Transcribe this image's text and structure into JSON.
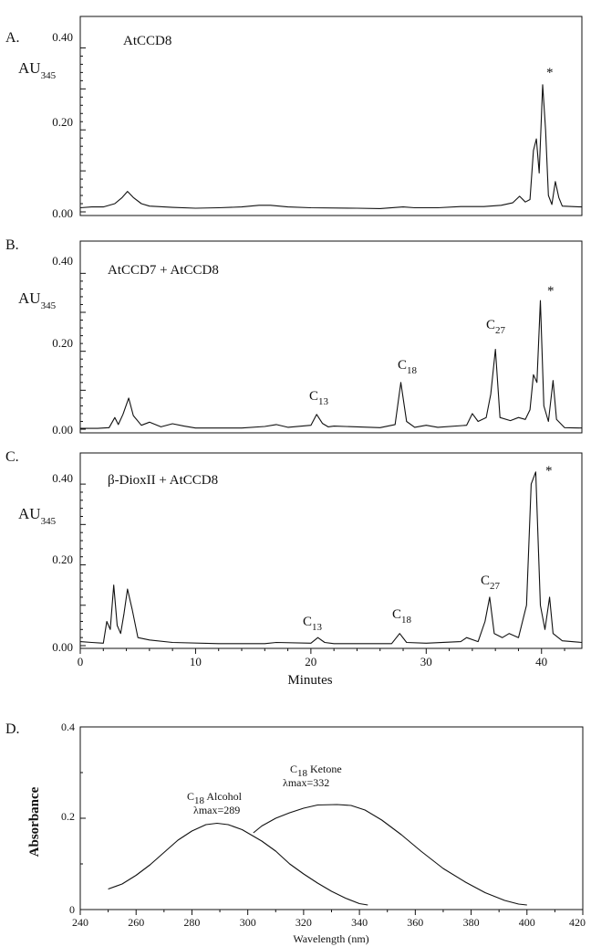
{
  "chart_data": [
    {
      "type": "line",
      "panel_label": "A.",
      "annotation": "AtCCD8",
      "ylabel": "AU",
      "ylabel_sub": "345",
      "yticks": [
        "0.00",
        "0.20",
        "0.40"
      ],
      "ylim": [
        0,
        0.45
      ],
      "xlim": [
        0,
        43.5
      ],
      "peak_labels": [
        {
          "x": 40.1,
          "y": 0.31,
          "text": "*"
        }
      ],
      "series": [
        {
          "points": [
            [
              0,
              0.01
            ],
            [
              1,
              0.012
            ],
            [
              2,
              0.012
            ],
            [
              3,
              0.02
            ],
            [
              3.6,
              0.034
            ],
            [
              4.1,
              0.05
            ],
            [
              4.6,
              0.035
            ],
            [
              5.3,
              0.02
            ],
            [
              6,
              0.014
            ],
            [
              8,
              0.011
            ],
            [
              10,
              0.009
            ],
            [
              12,
              0.01
            ],
            [
              14,
              0.012
            ],
            [
              15.5,
              0.016
            ],
            [
              16.5,
              0.016
            ],
            [
              18,
              0.012
            ],
            [
              20,
              0.01
            ],
            [
              24,
              0.009
            ],
            [
              26,
              0.008
            ],
            [
              28,
              0.012
            ],
            [
              29,
              0.01
            ],
            [
              31,
              0.01
            ],
            [
              33,
              0.013
            ],
            [
              35,
              0.013
            ],
            [
              36.5,
              0.016
            ],
            [
              37.5,
              0.022
            ],
            [
              38.1,
              0.038
            ],
            [
              38.6,
              0.024
            ],
            [
              39.0,
              0.03
            ],
            [
              39.3,
              0.15
            ],
            [
              39.55,
              0.178
            ],
            [
              39.8,
              0.095
            ],
            [
              40.1,
              0.31
            ],
            [
              40.35,
              0.2
            ],
            [
              40.6,
              0.04
            ],
            [
              40.9,
              0.018
            ],
            [
              41.2,
              0.074
            ],
            [
              41.5,
              0.035
            ],
            [
              41.8,
              0.014
            ],
            [
              43.5,
              0.012
            ]
          ]
        }
      ]
    },
    {
      "type": "line",
      "panel_label": "B.",
      "annotation": "AtCCD7 + AtCCD8",
      "ylabel": "AU",
      "ylabel_sub": "345",
      "yticks": [
        "0.00",
        "0.20",
        "0.40"
      ],
      "ylim": [
        0,
        0.45
      ],
      "xlim": [
        0,
        43.5
      ],
      "peak_labels": [
        {
          "x": 20.5,
          "y": 0.04,
          "text": "C",
          "sub": "13"
        },
        {
          "x": 27.9,
          "y": 0.12,
          "text": "C",
          "sub": "18"
        },
        {
          "x": 36.0,
          "y": 0.21,
          "text": "C",
          "sub": "27"
        },
        {
          "x": 40.0,
          "y": 0.33,
          "text": "*"
        }
      ],
      "series": [
        {
          "points": [
            [
              0,
              0.002
            ],
            [
              1.5,
              0.002
            ],
            [
              2.5,
              0.004
            ],
            [
              3.0,
              0.03
            ],
            [
              3.3,
              0.012
            ],
            [
              3.7,
              0.038
            ],
            [
              4.2,
              0.08
            ],
            [
              4.6,
              0.035
            ],
            [
              5.3,
              0.01
            ],
            [
              6,
              0.018
            ],
            [
              7,
              0.006
            ],
            [
              8,
              0.014
            ],
            [
              9,
              0.008
            ],
            [
              10,
              0.003
            ],
            [
              14,
              0.003
            ],
            [
              16,
              0.007
            ],
            [
              17,
              0.012
            ],
            [
              18,
              0.005
            ],
            [
              20,
              0.01
            ],
            [
              20.5,
              0.038
            ],
            [
              21,
              0.015
            ],
            [
              21.5,
              0.006
            ],
            [
              22,
              0.008
            ],
            [
              26,
              0.004
            ],
            [
              27.3,
              0.012
            ],
            [
              27.8,
              0.12
            ],
            [
              28.3,
              0.02
            ],
            [
              29,
              0.005
            ],
            [
              30,
              0.01
            ],
            [
              31,
              0.005
            ],
            [
              33.5,
              0.01
            ],
            [
              34.0,
              0.04
            ],
            [
              34.5,
              0.02
            ],
            [
              35.2,
              0.03
            ],
            [
              35.6,
              0.09
            ],
            [
              36.0,
              0.205
            ],
            [
              36.4,
              0.03
            ],
            [
              37.3,
              0.022
            ],
            [
              38.0,
              0.03
            ],
            [
              38.6,
              0.025
            ],
            [
              39.0,
              0.05
            ],
            [
              39.3,
              0.14
            ],
            [
              39.6,
              0.12
            ],
            [
              39.9,
              0.33
            ],
            [
              40.2,
              0.06
            ],
            [
              40.6,
              0.02
            ],
            [
              41.0,
              0.125
            ],
            [
              41.3,
              0.025
            ],
            [
              42,
              0.004
            ],
            [
              43.5,
              0.003
            ]
          ]
        }
      ]
    },
    {
      "type": "line",
      "panel_label": "C.",
      "annotation": "β-DioxII + AtCCD8",
      "ylabel": "AU",
      "ylabel_sub": "345",
      "yticks": [
        "0.00",
        "0.20",
        "0.40"
      ],
      "ylim": [
        0,
        0.45
      ],
      "xlim": [
        0,
        43.5
      ],
      "xticks": [
        "0",
        "10",
        "20",
        "30",
        "40"
      ],
      "xlabel": "Minutes",
      "peak_labels": [
        {
          "x": 20.7,
          "y": 0.02,
          "text": "C",
          "sub": "13"
        },
        {
          "x": 27.7,
          "y": 0.04,
          "text": "C",
          "sub": "18"
        },
        {
          "x": 35.5,
          "y": 0.12,
          "text": "C",
          "sub": "27"
        },
        {
          "x": 40.0,
          "y": 0.43,
          "text": "*"
        }
      ],
      "series": [
        {
          "points": [
            [
              0,
              0.01
            ],
            [
              1,
              0.008
            ],
            [
              2,
              0.006
            ],
            [
              2.3,
              0.06
            ],
            [
              2.6,
              0.04
            ],
            [
              2.9,
              0.15
            ],
            [
              3.2,
              0.05
            ],
            [
              3.5,
              0.03
            ],
            [
              3.8,
              0.08
            ],
            [
              4.1,
              0.14
            ],
            [
              4.5,
              0.09
            ],
            [
              5,
              0.02
            ],
            [
              6,
              0.014
            ],
            [
              8,
              0.008
            ],
            [
              12,
              0.005
            ],
            [
              16,
              0.005
            ],
            [
              17,
              0.008
            ],
            [
              20,
              0.006
            ],
            [
              20.6,
              0.02
            ],
            [
              21.2,
              0.008
            ],
            [
              22,
              0.005
            ],
            [
              27,
              0.005
            ],
            [
              27.7,
              0.03
            ],
            [
              28.3,
              0.008
            ],
            [
              30,
              0.006
            ],
            [
              33,
              0.01
            ],
            [
              33.5,
              0.02
            ],
            [
              34.5,
              0.01
            ],
            [
              35.1,
              0.06
            ],
            [
              35.5,
              0.12
            ],
            [
              35.9,
              0.03
            ],
            [
              36.6,
              0.02
            ],
            [
              37.2,
              0.03
            ],
            [
              38,
              0.02
            ],
            [
              38.7,
              0.1
            ],
            [
              39.1,
              0.4
            ],
            [
              39.5,
              0.43
            ],
            [
              39.9,
              0.1
            ],
            [
              40.3,
              0.04
            ],
            [
              40.7,
              0.12
            ],
            [
              41,
              0.03
            ],
            [
              41.8,
              0.012
            ],
            [
              43.5,
              0.008
            ]
          ]
        }
      ]
    },
    {
      "type": "line",
      "panel_label": "D.",
      "ylabel": "Absorbance",
      "xlabel": "Wavelength (nm)",
      "ylim": [
        0,
        0.4
      ],
      "xlim": [
        240,
        420
      ],
      "yticks": [
        "0",
        "0.2",
        "0.4"
      ],
      "xticks": [
        "240",
        "260",
        "280",
        "300",
        "320",
        "340",
        "360",
        "380",
        "400",
        "420"
      ],
      "peak_labels": [
        {
          "text": "C",
          "sub": "18",
          "rest": " Alcohol",
          "line2": "λmax=289"
        },
        {
          "text": "C",
          "sub": "18",
          "rest": " Ketone",
          "line2": "λmax=332"
        }
      ],
      "series": [
        {
          "points": [
            [
              250,
              0.045
            ],
            [
              255,
              0.056
            ],
            [
              260,
              0.075
            ],
            [
              265,
              0.098
            ],
            [
              270,
              0.125
            ],
            [
              275,
              0.152
            ],
            [
              280,
              0.172
            ],
            [
              285,
              0.186
            ],
            [
              289,
              0.189
            ],
            [
              293,
              0.186
            ],
            [
              298,
              0.175
            ],
            [
              305,
              0.15
            ],
            [
              310,
              0.128
            ],
            [
              315,
              0.1
            ],
            [
              320,
              0.078
            ],
            [
              325,
              0.058
            ],
            [
              330,
              0.04
            ],
            [
              335,
              0.025
            ],
            [
              340,
              0.013
            ],
            [
              343,
              0.01
            ]
          ]
        },
        {
          "points": [
            [
              302,
              0.168
            ],
            [
              305,
              0.183
            ],
            [
              310,
              0.2
            ],
            [
              315,
              0.212
            ],
            [
              320,
              0.222
            ],
            [
              325,
              0.229
            ],
            [
              332,
              0.23
            ],
            [
              337,
              0.228
            ],
            [
              342,
              0.218
            ],
            [
              348,
              0.196
            ],
            [
              355,
              0.164
            ],
            [
              362,
              0.128
            ],
            [
              370,
              0.09
            ],
            [
              378,
              0.06
            ],
            [
              385,
              0.037
            ],
            [
              392,
              0.02
            ],
            [
              397,
              0.012
            ],
            [
              400,
              0.01
            ]
          ]
        }
      ]
    }
  ]
}
